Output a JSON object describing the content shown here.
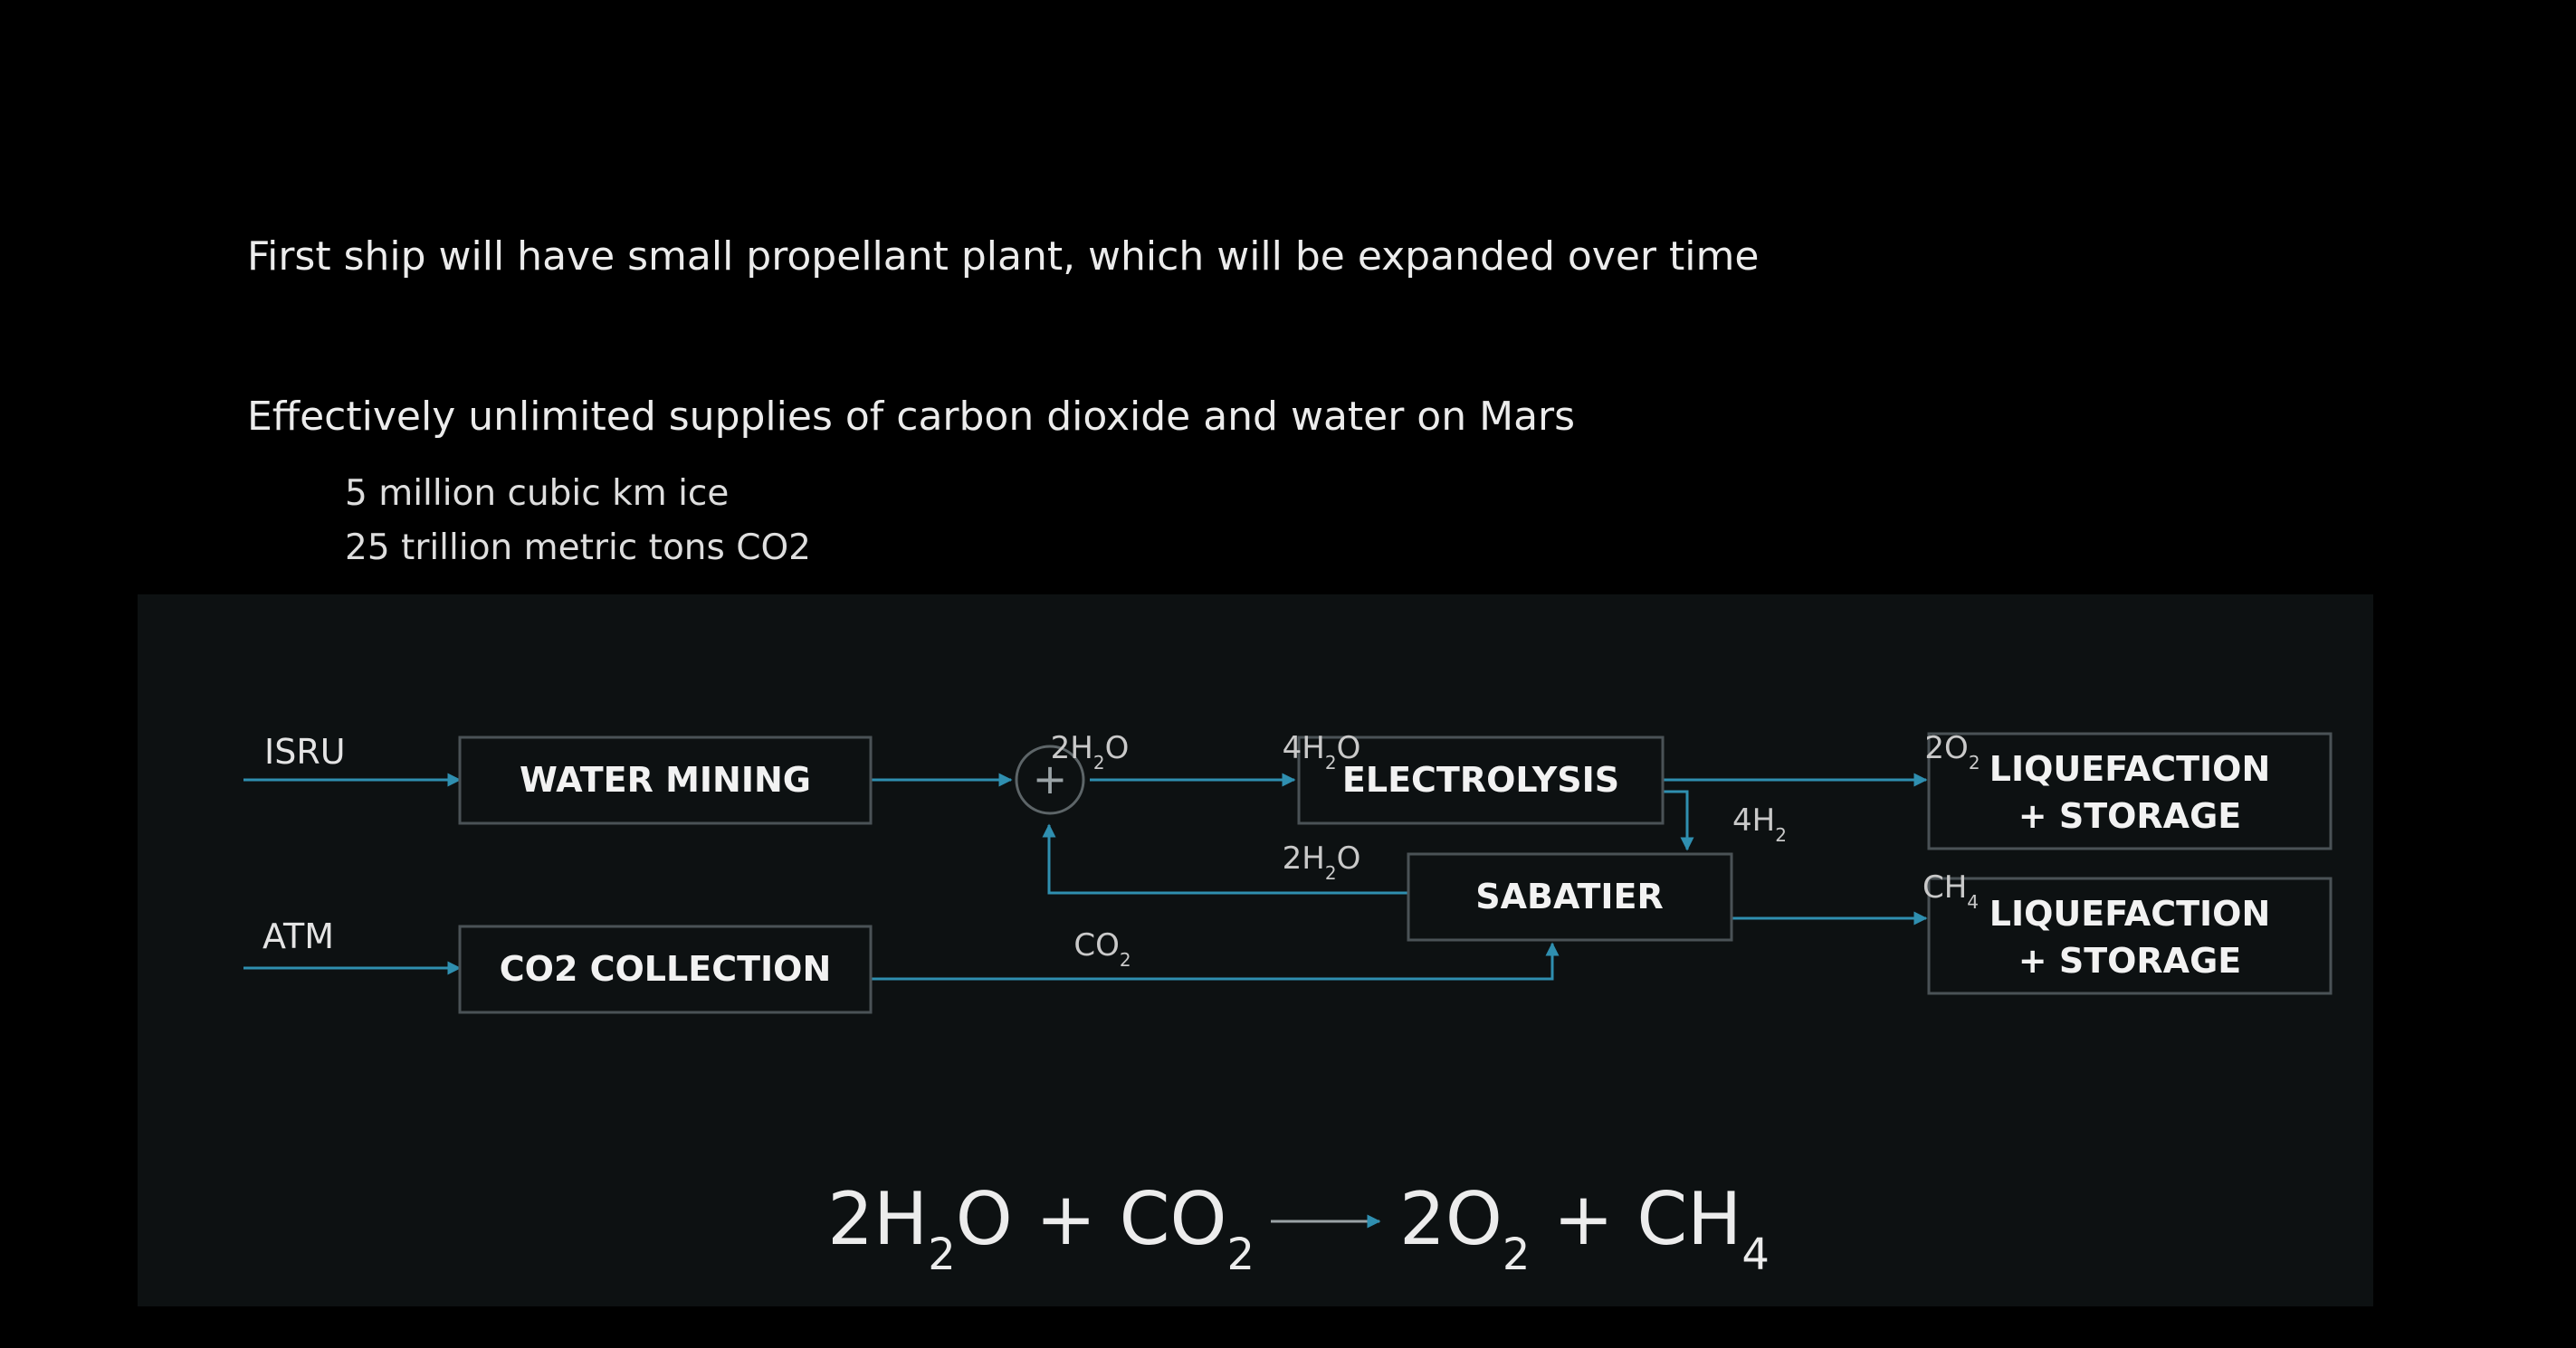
{
  "slide": {
    "bullet_1": "First ship will have small propellant plant, which will be expanded over time",
    "bullet_2": "Effectively unlimited supplies of carbon dioxide and water on Mars",
    "sub_bullets": [
      "5 million cubic km ice",
      "25 trillion metric tons CO2"
    ]
  },
  "diagram": {
    "inputs": {
      "isru": "ISRU",
      "atm": "ATM"
    },
    "nodes": {
      "water_mining": "WATER MINING",
      "co2_collection": "CO2 COLLECTION",
      "electrolysis": "ELECTROLYSIS",
      "sabatier": "SABATIER",
      "liquefaction_top": [
        "LIQUEFACTION",
        "+ STORAGE"
      ],
      "liquefaction_bottom": [
        "LIQUEFACTION",
        "+ STORAGE"
      ]
    },
    "flow_labels": {
      "water_out": [
        "2H",
        "2",
        "O"
      ],
      "water_combined": [
        "4H",
        "2",
        "O"
      ],
      "water_recycle": [
        "2H",
        "2",
        "O"
      ],
      "oxygen": [
        "2O",
        "2",
        ""
      ],
      "hydrogen": [
        "4H",
        "2",
        ""
      ],
      "methane": [
        "CH",
        "4",
        ""
      ],
      "co2": [
        "CO",
        "2",
        ""
      ]
    },
    "mixer_symbol": "+",
    "equation": {
      "lhs": [
        "2H",
        "2",
        "O + CO",
        "2",
        ""
      ],
      "rhs": [
        "2O",
        "2",
        " + CH",
        "4",
        ""
      ]
    }
  },
  "colors": {
    "background": "#000000",
    "panel": "#0d1112",
    "flow_line": "#2f8fb0",
    "box_stroke": "#4a5256",
    "text": "#ececec"
  }
}
